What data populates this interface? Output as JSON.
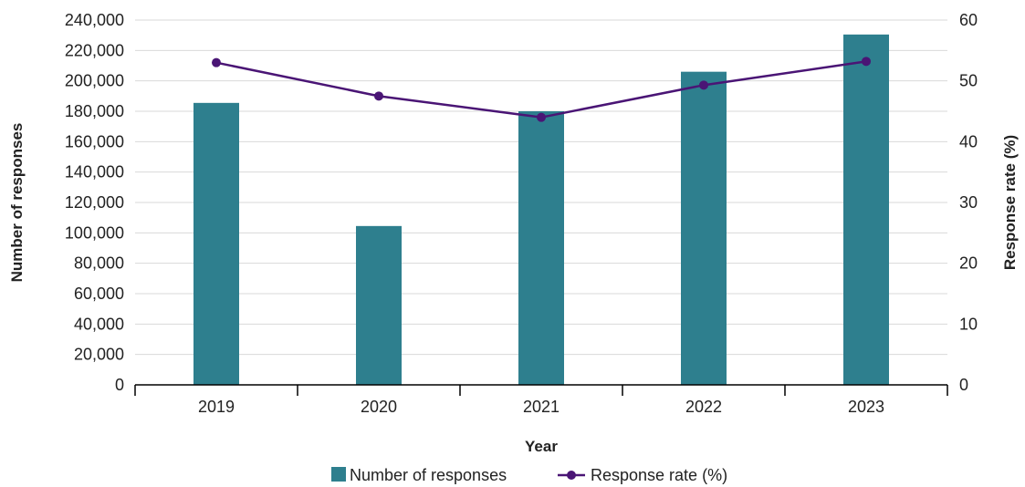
{
  "chart_data": {
    "type": "bar",
    "categories": [
      "2019",
      "2020",
      "2021",
      "2022",
      "2023"
    ],
    "xlabel": "Year",
    "ylabel_left": "Number of responses",
    "ylabel_right": "Response rate (%)",
    "ylim_left": [
      0,
      240000
    ],
    "ylim_right": [
      0,
      60
    ],
    "yticks_left": [
      0,
      20000,
      40000,
      60000,
      80000,
      100000,
      120000,
      140000,
      160000,
      180000,
      200000,
      220000,
      240000
    ],
    "yticks_left_labels": [
      "0",
      "20,000",
      "40,000",
      "60,000",
      "80,000",
      "100,000",
      "120,000",
      "140,000",
      "160,000",
      "180,000",
      "200,000",
      "220,000",
      "240,000"
    ],
    "yticks_right": [
      0,
      10,
      20,
      30,
      40,
      50,
      60
    ],
    "yticks_right_labels": [
      "0",
      "10",
      "20",
      "30",
      "40",
      "50",
      "60"
    ],
    "grid": true,
    "legend_position": "bottom",
    "series": [
      {
        "name": "Number of responses",
        "type": "bar",
        "axis": "left",
        "color": "#2e7f8e",
        "values": [
          185500,
          104500,
          180000,
          206000,
          230500
        ]
      },
      {
        "name": "Response rate (%)",
        "type": "line",
        "axis": "right",
        "color": "#4a1575",
        "values": [
          53,
          47.5,
          44,
          49.3,
          53.2
        ]
      }
    ]
  }
}
